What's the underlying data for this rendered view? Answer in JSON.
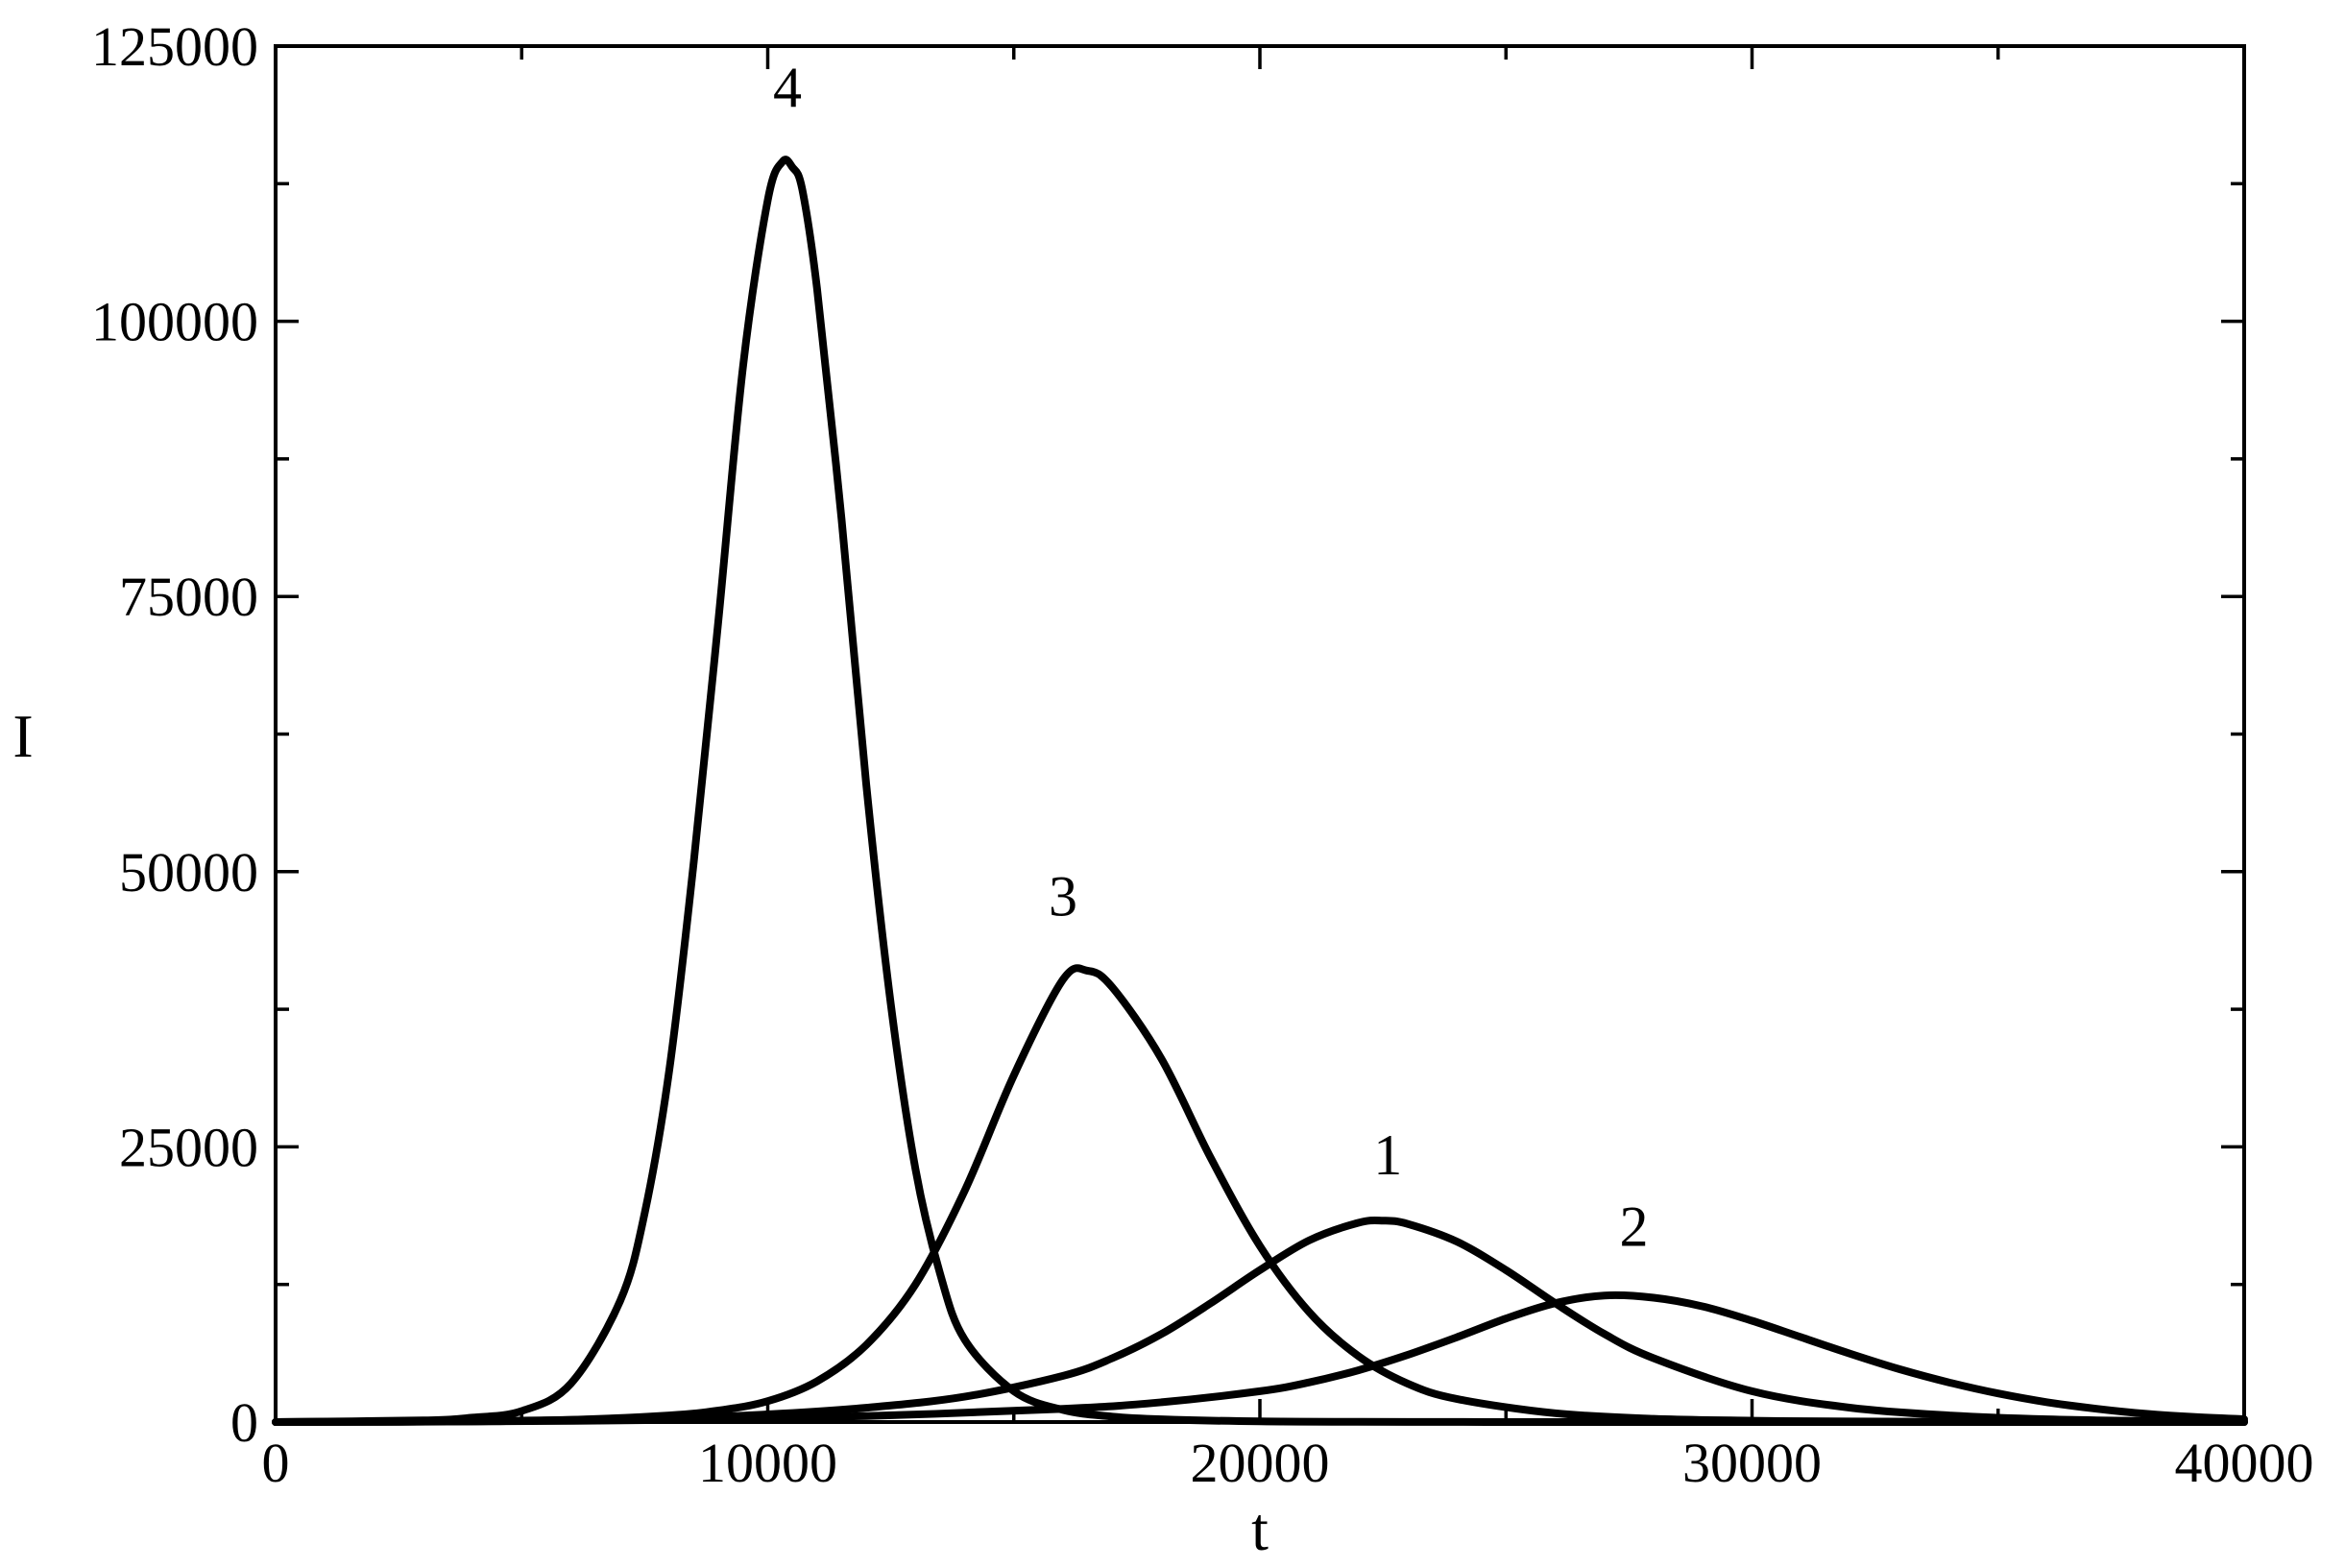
{
  "chart_data": {
    "type": "line",
    "title": "",
    "xlabel": "t",
    "ylabel": "I",
    "xlim": [
      0,
      40000
    ],
    "ylim": [
      0,
      125000
    ],
    "x_major_ticks": [
      0,
      10000,
      20000,
      30000,
      40000
    ],
    "x_major_tick_labels": [
      "0",
      "10000",
      "20000",
      "30000",
      "40000"
    ],
    "x_minor_ticks": [
      5000,
      15000,
      25000,
      35000
    ],
    "y_major_ticks": [
      0,
      25000,
      50000,
      75000,
      100000,
      125000
    ],
    "y_major_tick_labels": [
      "0",
      "25000",
      "50000",
      "75000",
      "100000",
      "125000"
    ],
    "y_minor_ticks": [
      12500,
      37500,
      62500,
      87500,
      112500
    ],
    "grid": false,
    "legend": "none",
    "series_color": "#000000",
    "series": [
      {
        "label": "1",
        "x": [
          0,
          4000,
          8000,
          10000,
          12000,
          14000,
          16000,
          17000,
          18000,
          19000,
          20000,
          21000,
          22000,
          22500,
          23000,
          24000,
          25000,
          26000,
          27000,
          28000,
          30000,
          32000,
          34000,
          36000,
          38000,
          40000
        ],
        "y": [
          0,
          80,
          350,
          700,
          1300,
          2300,
          4200,
          5800,
          8000,
          10800,
          13800,
          16500,
          18100,
          18300,
          18000,
          16400,
          13800,
          10800,
          8000,
          5800,
          2800,
          1300,
          600,
          250,
          100,
          40
        ]
      },
      {
        "label": "2",
        "x": [
          0,
          4000,
          8000,
          12000,
          16000,
          18000,
          20000,
          21000,
          22000,
          23000,
          24000,
          25000,
          26000,
          27000,
          28000,
          29000,
          30000,
          31000,
          32000,
          33000,
          34000,
          35000,
          36000,
          37000,
          38000,
          39000,
          40000
        ],
        "y": [
          0,
          50,
          200,
          550,
          1200,
          1800,
          2800,
          3600,
          4700,
          6100,
          7700,
          9400,
          10800,
          11500,
          11300,
          10500,
          9200,
          7700,
          6200,
          4800,
          3600,
          2600,
          1800,
          1200,
          750,
          450,
          260
        ]
      },
      {
        "label": "3",
        "x": [
          0,
          4000,
          6000,
          8000,
          9000,
          10000,
          11000,
          12000,
          13000,
          14000,
          15000,
          16000,
          16500,
          17000,
          18000,
          19000,
          20000,
          21000,
          22000,
          23000,
          24000,
          26000,
          28000,
          30000,
          32000,
          36000,
          40000
        ],
        "y": [
          0,
          60,
          200,
          600,
          1050,
          1900,
          3700,
          7000,
          12500,
          21000,
          31500,
          40200,
          41000,
          39500,
          33000,
          24000,
          16000,
          10000,
          6000,
          3500,
          2100,
          800,
          300,
          120,
          50,
          10,
          0
        ]
      },
      {
        "label": "4",
        "x": [
          0,
          3000,
          4000,
          5000,
          6000,
          7000,
          7500,
          8000,
          8500,
          9000,
          9500,
          10000,
          10300,
          10500,
          10700,
          11000,
          11500,
          12000,
          12500,
          13000,
          13500,
          14000,
          15000,
          16000,
          17000,
          18000,
          20000,
          22000,
          24000,
          26000,
          30000,
          40000
        ],
        "y": [
          0,
          150,
          400,
          1000,
          3500,
          11000,
          19000,
          32000,
          51000,
          73000,
          96000,
          111000,
          114500,
          114000,
          112000,
          103000,
          82000,
          58000,
          38000,
          23000,
          13500,
          7500,
          2800,
          1100,
          500,
          250,
          60,
          15,
          5,
          0,
          0,
          0
        ]
      }
    ],
    "curve_labels": [
      {
        "text": "4",
        "x": 10400,
        "y": 119500
      },
      {
        "text": "3",
        "x": 16000,
        "y": 46000
      },
      {
        "text": "1",
        "x": 22600,
        "y": 22500
      },
      {
        "text": "2",
        "x": 27600,
        "y": 16000
      }
    ]
  }
}
